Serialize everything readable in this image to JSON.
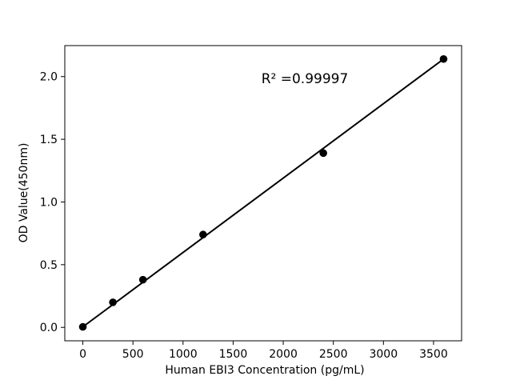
{
  "figure": {
    "background_color": "#ffffff",
    "foreground_color": "#000000"
  },
  "chart_data": {
    "type": "scatter",
    "title": "",
    "xlabel": "Human EBI3 Concentration (pg/mL)",
    "ylabel": "OD Value(450nm)",
    "annotation": "R² =0.99997",
    "series": [
      {
        "name": "standard-curve-points",
        "x": [
          0,
          300,
          600,
          1200,
          2400,
          3600
        ],
        "y": [
          0.004,
          0.2,
          0.38,
          0.74,
          1.39,
          2.14
        ],
        "marker": "circle",
        "color": "#000000"
      }
    ],
    "fit_line": {
      "x": [
        0,
        3600
      ],
      "y": [
        0.004,
        2.14
      ],
      "color": "#000000",
      "width": 2
    },
    "xlim": [
      -180,
      3780
    ],
    "ylim": [
      -0.107,
      2.247
    ],
    "x_ticks": [
      0,
      500,
      1000,
      1500,
      2000,
      2500,
      3000,
      3500
    ],
    "x_tick_labels": [
      "0",
      "500",
      "1000",
      "1500",
      "2000",
      "2500",
      "3000",
      "3500"
    ],
    "y_ticks": [
      0.0,
      0.5,
      1.0,
      1.5,
      2.0
    ],
    "y_tick_labels": [
      "0.0",
      "0.5",
      "1.0",
      "1.5",
      "2.0"
    ],
    "grid": false,
    "legend": null
  }
}
